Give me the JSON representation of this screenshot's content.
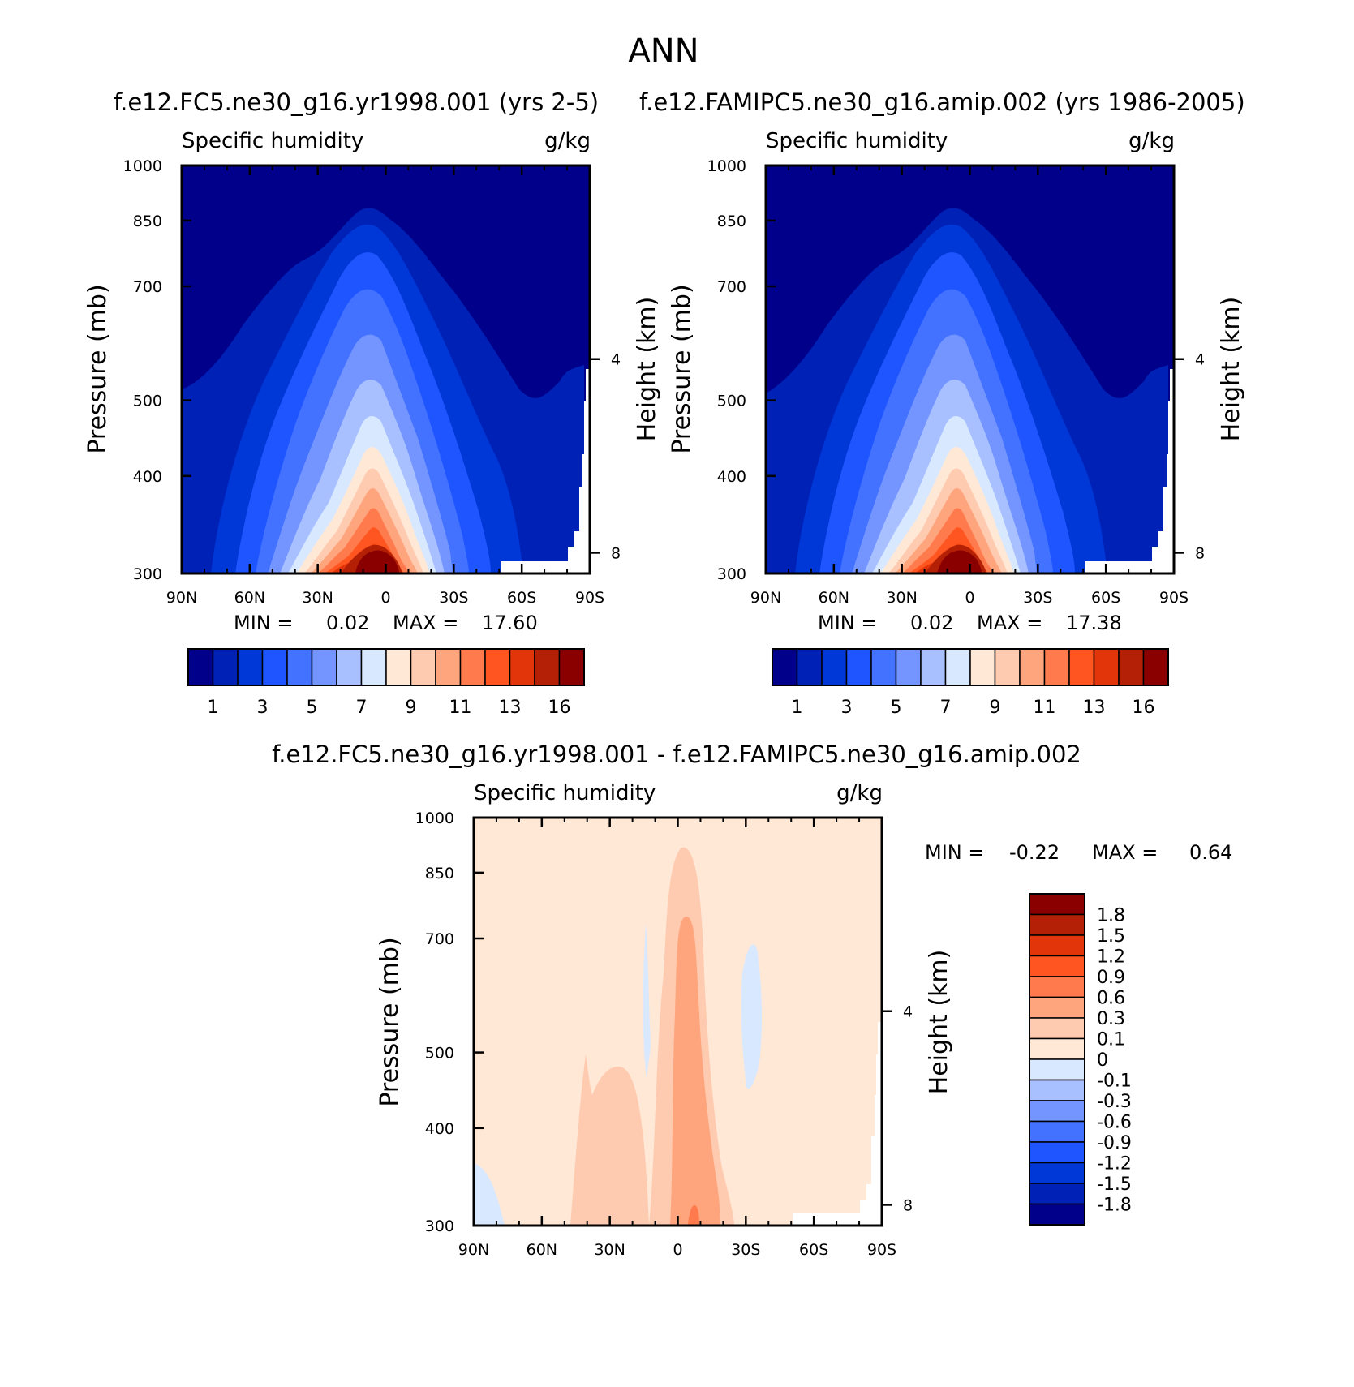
{
  "figure_title": "ANN",
  "colors": {
    "axis": "#000000",
    "missing": "#ffffff"
  },
  "chart_data": [
    {
      "id": "p1",
      "type": "contour",
      "case_title": "f.e12.FC5.ne30_g16.yr1998.001 (yrs 2-5)",
      "left_label": "Specific humidity",
      "right_label": "g/kg",
      "ylabel": "Pressure (mb)",
      "ylabel_right": "Height (km)",
      "x_ticks": [
        "90N",
        "60N",
        "30N",
        "0",
        "30S",
        "60S",
        "90S"
      ],
      "y_ticks": [
        "300",
        "400",
        "500",
        "700",
        "850",
        "1000"
      ],
      "y_tick_values": [
        300,
        400,
        500,
        700,
        850,
        1000
      ],
      "height_ticks": [
        "8",
        "4"
      ],
      "height_tick_values_km": [
        8,
        4
      ],
      "xlim": [
        90,
        -90
      ],
      "ylim": [
        1000,
        300
      ],
      "stats": {
        "min_label": "MIN =",
        "min": "0.02",
        "max_label": "MAX =",
        "max": "17.60"
      },
      "colorbar": {
        "orientation": "horizontal",
        "colors": [
          "#00008a",
          "#0021b5",
          "#0038d8",
          "#1f55ff",
          "#4272ff",
          "#7495ff",
          "#a8c0ff",
          "#d8e8ff",
          "#ffe8d6",
          "#ffcbb0",
          "#ffa57e",
          "#ff7a4c",
          "#ff5520",
          "#e2360a",
          "#b32005",
          "#8a0000"
        ],
        "labels": [
          "1",
          "3",
          "5",
          "7",
          "9",
          "11",
          "13",
          "16"
        ]
      }
    },
    {
      "id": "p2",
      "type": "contour",
      "case_title": "f.e12.FAMIPC5.ne30_g16.amip.002 (yrs 1986-2005)",
      "left_label": "Specific humidity",
      "right_label": "g/kg",
      "ylabel": "Pressure (mb)",
      "ylabel_right": "Height (km)",
      "x_ticks": [
        "90N",
        "60N",
        "30N",
        "0",
        "30S",
        "60S",
        "90S"
      ],
      "y_ticks": [
        "300",
        "400",
        "500",
        "700",
        "850",
        "1000"
      ],
      "y_tick_values": [
        300,
        400,
        500,
        700,
        850,
        1000
      ],
      "height_ticks": [
        "8",
        "4"
      ],
      "height_tick_values_km": [
        8,
        4
      ],
      "xlim": [
        90,
        -90
      ],
      "ylim": [
        1000,
        300
      ],
      "stats": {
        "min_label": "MIN =",
        "min": "0.02",
        "max_label": "MAX =",
        "max": "17.38"
      },
      "colorbar": {
        "orientation": "horizontal",
        "colors": [
          "#00008a",
          "#0021b5",
          "#0038d8",
          "#1f55ff",
          "#4272ff",
          "#7495ff",
          "#a8c0ff",
          "#d8e8ff",
          "#ffe8d6",
          "#ffcbb0",
          "#ffa57e",
          "#ff7a4c",
          "#ff5520",
          "#e2360a",
          "#b32005",
          "#8a0000"
        ],
        "labels": [
          "1",
          "3",
          "5",
          "7",
          "9",
          "11",
          "13",
          "16"
        ]
      }
    },
    {
      "id": "p3",
      "type": "contour",
      "case_title": "f.e12.FC5.ne30_g16.yr1998.001 - f.e12.FAMIPC5.ne30_g16.amip.002",
      "left_label": "Specific humidity",
      "right_label": "g/kg",
      "ylabel": "Pressure (mb)",
      "ylabel_right": "Height (km)",
      "x_ticks": [
        "90N",
        "60N",
        "30N",
        "0",
        "30S",
        "60S",
        "90S"
      ],
      "y_ticks": [
        "300",
        "400",
        "500",
        "700",
        "850",
        "1000"
      ],
      "y_tick_values": [
        300,
        400,
        500,
        700,
        850,
        1000
      ],
      "height_ticks": [
        "8",
        "4"
      ],
      "height_tick_values_km": [
        8,
        4
      ],
      "xlim": [
        90,
        -90
      ],
      "ylim": [
        1000,
        300
      ],
      "stats": {
        "min_label": "MIN =",
        "min": "-0.22",
        "max_label": "MAX =",
        "max": "0.64"
      },
      "colorbar": {
        "orientation": "vertical",
        "colors": [
          "#8a0000",
          "#b32005",
          "#e2360a",
          "#ff5520",
          "#ff7a4c",
          "#ffa57e",
          "#ffcbb0",
          "#ffe8d6",
          "#d8e8ff",
          "#a8c0ff",
          "#7495ff",
          "#4272ff",
          "#1f55ff",
          "#0038d8",
          "#0021b5",
          "#00008a"
        ],
        "labels": [
          "1.8",
          "1.5",
          "1.2",
          "0.9",
          "0.6",
          "0.3",
          "0.1",
          "0",
          "-0.1",
          "-0.3",
          "-0.6",
          "-0.9",
          "-1.2",
          "-1.5",
          "-1.8"
        ]
      }
    }
  ]
}
